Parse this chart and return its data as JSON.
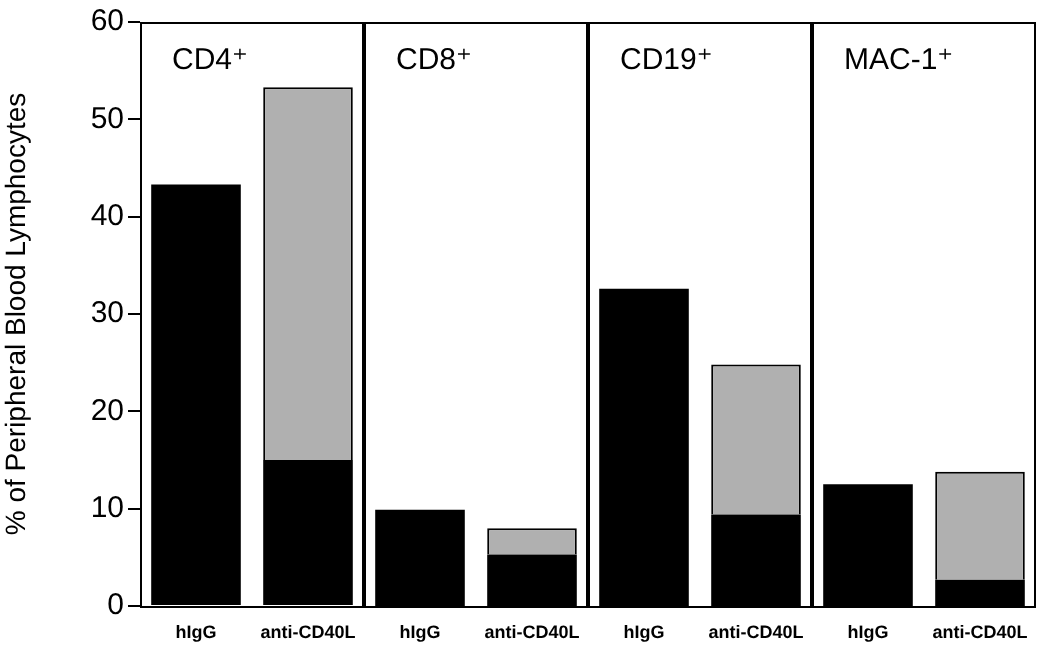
{
  "chart_data": [
    {
      "type": "bar",
      "title": "CD4⁺",
      "ylabel": "% of Peripheral Blood Lymphocytes",
      "categories": [
        "hIgG",
        "anti-CD40L"
      ],
      "stacked": true,
      "ylim": [
        0,
        60
      ],
      "yticks": [
        0,
        10,
        20,
        30,
        40,
        50,
        60
      ],
      "series": [
        {
          "color": "#000000",
          "values": [
            43.3,
            15.0
          ]
        },
        {
          "color": "#b0b0b0",
          "values": [
            null,
            38.3
          ]
        }
      ]
    },
    {
      "type": "bar",
      "title": "CD8⁺",
      "categories": [
        "hIgG",
        "anti-CD40L"
      ],
      "stacked": true,
      "ylim": [
        0,
        60
      ],
      "yticks": [
        0,
        10,
        20,
        30,
        40,
        50,
        60
      ],
      "tick_labels": "x",
      "series": [
        {
          "color": "#000000",
          "values": [
            9.9,
            5.3
          ]
        },
        {
          "color": "#b0b0b0",
          "values": [
            null,
            2.7
          ]
        }
      ]
    },
    {
      "type": "bar",
      "title": "CD19⁺",
      "categories": [
        "hIgG",
        "anti-CD40L"
      ],
      "stacked": true,
      "ylim": [
        0,
        60
      ],
      "yticks": [
        0,
        10,
        20,
        30,
        40,
        50,
        60
      ],
      "tick_labels": "x",
      "series": [
        {
          "color": "#000000",
          "values": [
            32.6,
            9.4
          ]
        },
        {
          "color": "#b0b0b0",
          "values": [
            null,
            15.4
          ]
        }
      ]
    },
    {
      "type": "bar",
      "title": "MAC-1⁺",
      "categories": [
        "hIgG",
        "anti-CD40L"
      ],
      "stacked": true,
      "ylim": [
        0,
        60
      ],
      "yticks": [
        0,
        10,
        20,
        30,
        40,
        50,
        60
      ],
      "tick_labels": "x",
      "series": [
        {
          "color": "#000000",
          "values": [
            12.5,
            2.7
          ]
        },
        {
          "color": "#b0b0b0",
          "values": [
            null,
            11.1
          ]
        }
      ]
    }
  ]
}
